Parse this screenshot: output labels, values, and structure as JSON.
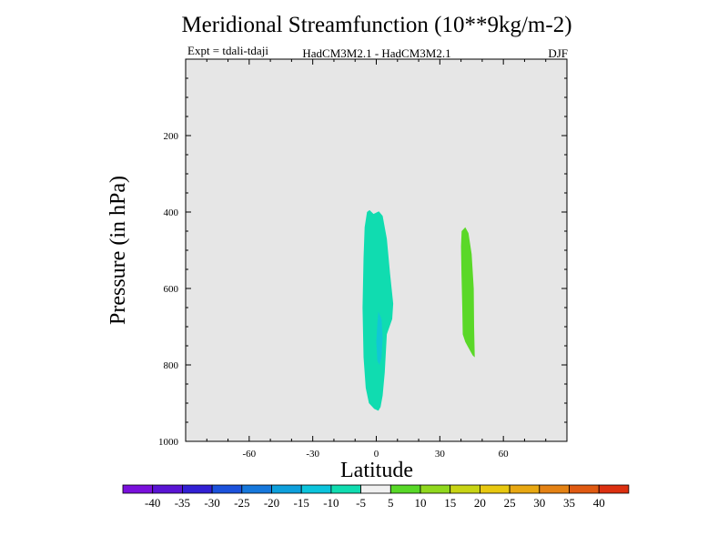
{
  "chart_data": {
    "type": "contour",
    "title": "Meridional Streamfunction (10**9kg/m-2)",
    "subtitle_left": "Expt = tdali-tdaji",
    "subtitle_center": "HadCM3M2.1 - HadCM3M2.1",
    "subtitle_right": "DJF",
    "xlabel": "Latitude",
    "ylabel": "Pressure (in hPa)",
    "xlim": [
      -90,
      90
    ],
    "ylim": [
      1000,
      0
    ],
    "xticks": [
      -60,
      -30,
      0,
      30,
      60
    ],
    "yticks": [
      200,
      400,
      600,
      800,
      1000
    ],
    "grid": false,
    "background_color": "#e6e6e6",
    "regions": [
      {
        "name": "negative-region",
        "level": "-10 to -5",
        "color": "#10dcb0",
        "outline": [
          [
            -4.4,
            400
          ],
          [
            -3.2,
            395
          ],
          [
            -1.3,
            405
          ],
          [
            1.2,
            398
          ],
          [
            3.0,
            410
          ],
          [
            5.0,
            470
          ],
          [
            6.5,
            560
          ],
          [
            8.0,
            640
          ],
          [
            7.5,
            680
          ],
          [
            5.0,
            720
          ],
          [
            4.0,
            820
          ],
          [
            3.0,
            880
          ],
          [
            2.0,
            910
          ],
          [
            1.0,
            920
          ],
          [
            -1.0,
            915
          ],
          [
            -3.5,
            900
          ],
          [
            -5.0,
            860
          ],
          [
            -6.0,
            780
          ],
          [
            -6.5,
            650
          ],
          [
            -6.0,
            520
          ],
          [
            -5.5,
            440
          ]
        ]
      },
      {
        "name": "core-region",
        "level": "-15 to -10",
        "color": "#10c8d4",
        "outline": [
          [
            1.0,
            660
          ],
          [
            2.5,
            680
          ],
          [
            3.0,
            730
          ],
          [
            2.5,
            780
          ],
          [
            1.5,
            800
          ],
          [
            0.5,
            790
          ],
          [
            0.0,
            740
          ],
          [
            0.5,
            690
          ]
        ]
      },
      {
        "name": "positive-region",
        "level": "5 to 10",
        "color": "#5ad828",
        "outline": [
          [
            40.3,
            450
          ],
          [
            42.0,
            440
          ],
          [
            43.5,
            455
          ],
          [
            45.0,
            510
          ],
          [
            46.0,
            600
          ],
          [
            46.2,
            700
          ],
          [
            46.5,
            780
          ],
          [
            45.5,
            775
          ],
          [
            42.0,
            740
          ],
          [
            40.8,
            720
          ],
          [
            40.6,
            650
          ],
          [
            40.2,
            560
          ],
          [
            40.0,
            490
          ]
        ]
      }
    ],
    "colorbar": {
      "levels": [
        "-40",
        "-35",
        "-30",
        "-25",
        "-20",
        "-15",
        "-10",
        "-5",
        "5",
        "10",
        "15",
        "20",
        "25",
        "30",
        "35",
        "40"
      ],
      "colors": [
        "#7a10dc",
        "#5a14d4",
        "#3220d4",
        "#1c52dc",
        "#1678dc",
        "#0ea0dc",
        "#0cc4dc",
        "#10dcb0",
        "#f0f0f0",
        "#58d828",
        "#90d81e",
        "#c8d414",
        "#e8c810",
        "#e8a812",
        "#e48214",
        "#e05a12",
        "#dc3010"
      ]
    }
  }
}
